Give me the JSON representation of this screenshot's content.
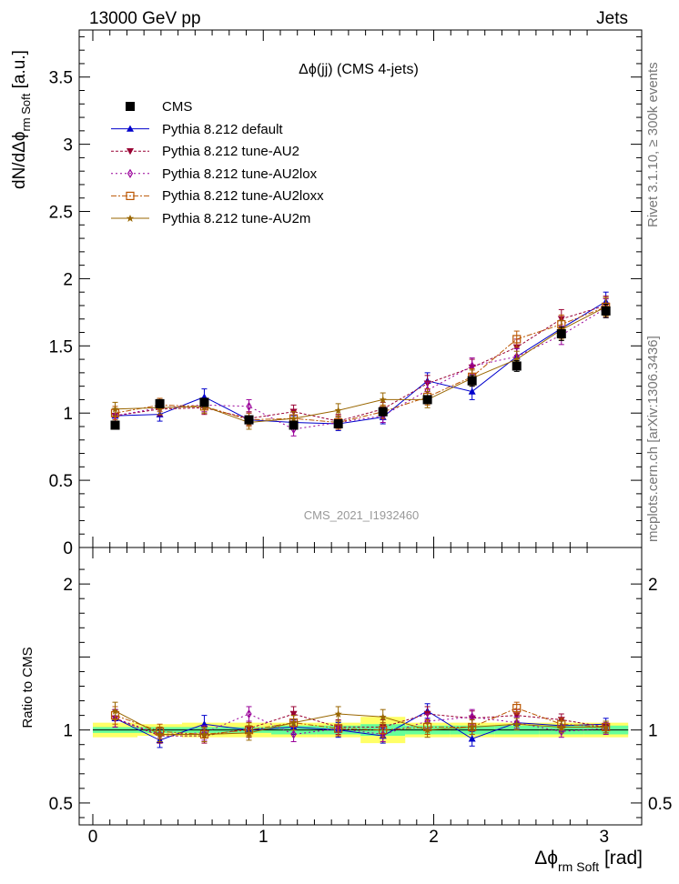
{
  "header": {
    "left": "13000 GeV pp",
    "right": "Jets"
  },
  "side": {
    "rivet": "Rivet 3.1.10, ≥ 300k events",
    "mcplots": "mcplots.cern.ch [arXiv:1306.3436]"
  },
  "colors": {
    "cms": "#000000",
    "default": "#0000cc",
    "au2": "#990033",
    "au2lox": "#990099",
    "au2loxx": "#bb5500",
    "au2m": "#996600",
    "band_inner": "#66ff99",
    "band_outer": "#ffff66"
  },
  "chart_data": [
    {
      "type": "scatter",
      "title": "Δϕ(jj) (CMS 4-jets)",
      "analysis_label": "CMS_2021_I1932460",
      "ylabel": "dN/dΔϕ",
      "ylabel_sub": "rm Soft",
      "ylabel_unit": " [a.u.]",
      "xlim": [
        -0.08,
        3.22
      ],
      "ylim": [
        0,
        3.85
      ],
      "yticks": [
        {
          "v": 0,
          "label": "0"
        },
        {
          "v": 0.5,
          "label": "0.5"
        },
        {
          "v": 1,
          "label": "1"
        },
        {
          "v": 1.5,
          "label": "1.5"
        },
        {
          "v": 2,
          "label": "2"
        },
        {
          "v": 2.5,
          "label": "2.5"
        },
        {
          "v": 3,
          "label": "3"
        },
        {
          "v": 3.5,
          "label": "3.5"
        }
      ],
      "x": [
        0.131,
        0.393,
        0.654,
        0.916,
        1.178,
        1.44,
        1.702,
        1.963,
        2.225,
        2.487,
        2.749,
        3.01
      ],
      "bin_half_width": 0.131,
      "series": [
        {
          "name": "CMS",
          "key": "cms",
          "marker": "square",
          "values": [
            0.91,
            1.07,
            1.08,
            0.95,
            0.91,
            0.92,
            1.01,
            1.1,
            1.24,
            1.35,
            1.59,
            1.76
          ],
          "errors": [
            0.03,
            0.03,
            0.03,
            0.03,
            0.03,
            0.03,
            0.03,
            0.03,
            0.04,
            0.04,
            0.05,
            0.05
          ]
        },
        {
          "name": "Pythia 8.212 default",
          "key": "default",
          "marker": "triangle-up",
          "dash": "",
          "values": [
            0.98,
            0.99,
            1.12,
            0.95,
            0.93,
            0.92,
            0.97,
            1.24,
            1.16,
            1.42,
            1.63,
            1.83
          ],
          "errors": [
            0.05,
            0.05,
            0.06,
            0.05,
            0.05,
            0.05,
            0.05,
            0.06,
            0.06,
            0.06,
            0.06,
            0.07
          ]
        },
        {
          "name": "Pythia 8.212 tune-AU2",
          "key": "au2",
          "marker": "triangle-down",
          "dash": "3,2",
          "values": [
            0.98,
            1.03,
            1.04,
            0.96,
            1.01,
            0.94,
            1.03,
            1.22,
            1.34,
            1.49,
            1.7,
            1.8
          ],
          "errors": [
            0.05,
            0.05,
            0.05,
            0.05,
            0.05,
            0.05,
            0.05,
            0.06,
            0.06,
            0.06,
            0.07,
            0.07
          ]
        },
        {
          "name": "Pythia 8.212 tune-AU2lox",
          "key": "au2lox",
          "marker": "diamond-open",
          "dash": "2,3",
          "values": [
            0.98,
            1.04,
            1.06,
            1.05,
            0.88,
            0.93,
            0.98,
            1.17,
            1.35,
            1.42,
            1.58,
            1.78
          ],
          "errors": [
            0.05,
            0.05,
            0.05,
            0.05,
            0.05,
            0.05,
            0.05,
            0.06,
            0.06,
            0.06,
            0.07,
            0.07
          ]
        },
        {
          "name": "Pythia 8.212 tune-AU2loxx",
          "key": "au2loxx",
          "marker": "square-open",
          "dash": "6,2,2,2",
          "values": [
            1.0,
            1.06,
            1.05,
            0.95,
            0.96,
            0.93,
            1.01,
            1.12,
            1.27,
            1.55,
            1.66,
            1.79
          ],
          "errors": [
            0.05,
            0.05,
            0.05,
            0.05,
            0.05,
            0.05,
            0.05,
            0.06,
            0.06,
            0.06,
            0.07,
            0.07
          ]
        },
        {
          "name": "Pythia 8.212 tune-AU2m",
          "key": "au2m",
          "marker": "star",
          "dash": "",
          "values": [
            1.03,
            1.04,
            1.05,
            0.93,
            0.96,
            1.02,
            1.1,
            1.1,
            1.26,
            1.4,
            1.62,
            1.79
          ],
          "errors": [
            0.05,
            0.05,
            0.05,
            0.05,
            0.05,
            0.05,
            0.05,
            0.06,
            0.06,
            0.06,
            0.07,
            0.07
          ]
        }
      ]
    },
    {
      "type": "scatter",
      "title": "Ratio to CMS",
      "ylabel": "Ratio to CMS",
      "xlabel": "Δϕ",
      "xlabel_sub": "rm Soft",
      "xlabel_unit": " [rad]",
      "xlim": [
        -0.08,
        3.22
      ],
      "ylim": [
        0.35,
        2.25
      ],
      "xticks": [
        {
          "v": 0,
          "label": "0"
        },
        {
          "v": 1,
          "label": "1"
        },
        {
          "v": 2,
          "label": "2"
        },
        {
          "v": 3,
          "label": "3"
        }
      ],
      "yticks": [
        {
          "v": 0.5,
          "label": "0.5"
        },
        {
          "v": 1,
          "label": "1"
        },
        {
          "v": 2,
          "label": "2"
        }
      ],
      "band_inner": [
        0.02,
        0.02,
        0.02,
        0.02,
        0.03,
        0.03,
        0.04,
        0.03,
        0.03,
        0.03,
        0.03,
        0.03
      ],
      "band_outer": [
        0.05,
        0.04,
        0.05,
        0.05,
        0.05,
        0.05,
        0.09,
        0.05,
        0.05,
        0.05,
        0.05,
        0.05
      ],
      "series": [
        {
          "key": "default",
          "marker": "triangle-up",
          "dash": "",
          "values": [
            1.08,
            0.93,
            1.04,
            1.0,
            1.02,
            1.0,
            0.96,
            1.13,
            0.94,
            1.05,
            1.03,
            1.04
          ],
          "errors": [
            0.06,
            0.05,
            0.06,
            0.05,
            0.05,
            0.05,
            0.05,
            0.05,
            0.05,
            0.04,
            0.04,
            0.04
          ]
        },
        {
          "key": "au2",
          "marker": "triangle-down",
          "dash": "3,2",
          "values": [
            1.08,
            0.96,
            0.96,
            1.01,
            1.11,
            1.02,
            1.02,
            1.11,
            1.08,
            1.1,
            1.07,
            1.02
          ],
          "errors": [
            0.06,
            0.05,
            0.05,
            0.05,
            0.05,
            0.05,
            0.05,
            0.05,
            0.05,
            0.04,
            0.04,
            0.04
          ]
        },
        {
          "key": "au2lox",
          "marker": "diamond-open",
          "dash": "2,3",
          "values": [
            1.08,
            0.97,
            0.98,
            1.11,
            0.97,
            1.01,
            0.97,
            1.06,
            1.09,
            1.05,
            0.99,
            1.01
          ],
          "errors": [
            0.06,
            0.05,
            0.05,
            0.05,
            0.05,
            0.05,
            0.05,
            0.05,
            0.05,
            0.04,
            0.04,
            0.04
          ]
        },
        {
          "key": "au2loxx",
          "marker": "square-open",
          "dash": "6,2,2,2",
          "values": [
            1.1,
            0.99,
            0.97,
            1.0,
            1.05,
            1.01,
            1.0,
            1.02,
            1.02,
            1.15,
            1.04,
            1.02
          ],
          "errors": [
            0.06,
            0.05,
            0.05,
            0.05,
            0.05,
            0.05,
            0.05,
            0.05,
            0.05,
            0.04,
            0.04,
            0.04
          ]
        },
        {
          "key": "au2m",
          "marker": "star",
          "dash": "",
          "values": [
            1.13,
            0.97,
            0.97,
            0.98,
            1.05,
            1.11,
            1.09,
            1.0,
            1.02,
            1.04,
            1.02,
            1.02
          ],
          "errors": [
            0.06,
            0.05,
            0.05,
            0.05,
            0.05,
            0.05,
            0.05,
            0.05,
            0.05,
            0.04,
            0.04,
            0.04
          ]
        }
      ]
    }
  ]
}
